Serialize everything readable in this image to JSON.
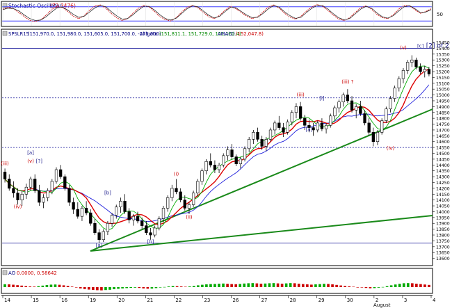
{
  "chart_data": [
    {
      "type": "line",
      "title": "Stochastic Oscillator",
      "title_value": "(72.3476)",
      "y_ticks": [
        50
      ],
      "ylim": [
        0,
        100
      ],
      "levels": [
        20,
        80
      ],
      "series": [
        {
          "name": "%K",
          "color": "#cc0000",
          "values": [
            70,
            78,
            72,
            55,
            38,
            22,
            18,
            25,
            45,
            68,
            82,
            78,
            60,
            40,
            30,
            42,
            65,
            84,
            88,
            74,
            52,
            34,
            22,
            30,
            52,
            74,
            86,
            80,
            60,
            38,
            26,
            20,
            34,
            58,
            78,
            86,
            76,
            56,
            38,
            30,
            44,
            66,
            82,
            72,
            56,
            40,
            30,
            38,
            58,
            80,
            88,
            74,
            52,
            36,
            28,
            40,
            62,
            80,
            90,
            82,
            64,
            44,
            28,
            22,
            34,
            56,
            76,
            84,
            70,
            48,
            34,
            30,
            46,
            70,
            86,
            84,
            68,
            52,
            60,
            72
          ]
        },
        {
          "name": "%D",
          "color": "#2a2a2a",
          "values": [
            68,
            74,
            72,
            62,
            45,
            30,
            22,
            24,
            38,
            58,
            76,
            79,
            66,
            48,
            36,
            40,
            58,
            76,
            86,
            80,
            60,
            42,
            28,
            30,
            46,
            66,
            82,
            82,
            66,
            46,
            30,
            24,
            32,
            52,
            72,
            84,
            80,
            62,
            44,
            33,
            40,
            60,
            78,
            76,
            60,
            45,
            34,
            36,
            52,
            72,
            86,
            78,
            58,
            42,
            31,
            36,
            56,
            74,
            86,
            85,
            70,
            50,
            33,
            25,
            31,
            50,
            70,
            82,
            74,
            54,
            38,
            32,
            42,
            62,
            80,
            85,
            72,
            56,
            58,
            68
          ]
        }
      ]
    },
    {
      "type": "candlestick",
      "header": {
        "symbol": "SPSLR15",
        "ohlc": "(151,970.0, 151,980.0, 151,605.0, 151,700.0, -275.000)",
        "alligator_label": "Alligato",
        "alligator_values": "(151,811.1, 151,729.0, 151,162.4)",
        "ama_label": "AMA(2)",
        "ama_value": "(152,047.8)"
      },
      "ylim": [
        13550,
        15480
      ],
      "y_ticks": [
        13600,
        13650,
        13700,
        13750,
        13800,
        13850,
        13900,
        13950,
        14000,
        14050,
        14100,
        14150,
        14200,
        14250,
        14300,
        14350,
        14400,
        14450,
        14500,
        14550,
        14600,
        14650,
        14700,
        14750,
        14800,
        14850,
        14900,
        14950,
        15000,
        15050,
        15100,
        15150,
        15200,
        15250,
        15300,
        15350,
        15400,
        15450
      ],
      "x_tick_labels": [
        "14",
        "15",
        "16",
        "19",
        "20",
        "21",
        "22",
        "23",
        "26",
        "27",
        "28",
        "29",
        "30",
        "2",
        "3",
        "4"
      ],
      "x_sub_label": "August",
      "horizontal_levels": [
        15400,
        14975,
        14550,
        13730
      ],
      "candles": [
        [
          14340,
          14370,
          14250,
          14280
        ],
        [
          14280,
          14320,
          14180,
          14200
        ],
        [
          14200,
          14260,
          14120,
          14160
        ],
        [
          14160,
          14200,
          14060,
          14100
        ],
        [
          14100,
          14180,
          14050,
          14150
        ],
        [
          14150,
          14240,
          14110,
          14210
        ],
        [
          14210,
          14300,
          14180,
          14280
        ],
        [
          14280,
          14320,
          14160,
          14180
        ],
        [
          14180,
          14230,
          14050,
          14080
        ],
        [
          14080,
          14150,
          14030,
          14120
        ],
        [
          14120,
          14200,
          14090,
          14180
        ],
        [
          14180,
          14280,
          14150,
          14260
        ],
        [
          14260,
          14380,
          14240,
          14360
        ],
        [
          14360,
          14400,
          14280,
          14300
        ],
        [
          14300,
          14320,
          14180,
          14200
        ],
        [
          14200,
          14230,
          14050,
          14080
        ],
        [
          14080,
          14120,
          13980,
          14020
        ],
        [
          14020,
          14080,
          13940,
          13960
        ],
        [
          13960,
          14050,
          13920,
          14030
        ],
        [
          14030,
          14090,
          13970,
          13990
        ],
        [
          13990,
          14020,
          13880,
          13900
        ],
        [
          13900,
          13940,
          13800,
          13820
        ],
        [
          13820,
          13850,
          13730,
          13760
        ],
        [
          13760,
          13850,
          13740,
          13830
        ],
        [
          13830,
          13920,
          13800,
          13900
        ],
        [
          13900,
          13990,
          13870,
          13970
        ],
        [
          13970,
          14060,
          13940,
          14040
        ],
        [
          14040,
          14120,
          13990,
          14090
        ],
        [
          14090,
          14150,
          13980,
          14000
        ],
        [
          14000,
          14030,
          13900,
          13930
        ],
        [
          13930,
          13980,
          13880,
          13960
        ],
        [
          13960,
          14000,
          13900,
          13920
        ],
        [
          13920,
          13950,
          13850,
          13880
        ],
        [
          13880,
          13920,
          13800,
          13820
        ],
        [
          13820,
          13860,
          13760,
          13800
        ],
        [
          13800,
          13880,
          13780,
          13860
        ],
        [
          13860,
          13960,
          13840,
          13940
        ],
        [
          13940,
          14050,
          13910,
          14030
        ],
        [
          14030,
          14140,
          14000,
          14120
        ],
        [
          14120,
          14230,
          14090,
          14200
        ],
        [
          14200,
          14280,
          14150,
          14170
        ],
        [
          14170,
          14200,
          14080,
          14100
        ],
        [
          14100,
          14140,
          14010,
          14030
        ],
        [
          14030,
          14080,
          13980,
          14060
        ],
        [
          14060,
          14180,
          14040,
          14160
        ],
        [
          14160,
          14280,
          14130,
          14260
        ],
        [
          14260,
          14370,
          14230,
          14350
        ],
        [
          14350,
          14450,
          14320,
          14430
        ],
        [
          14430,
          14500,
          14380,
          14400
        ],
        [
          14400,
          14440,
          14330,
          14360
        ],
        [
          14360,
          14420,
          14330,
          14400
        ],
        [
          14400,
          14500,
          14380,
          14480
        ],
        [
          14480,
          14560,
          14440,
          14530
        ],
        [
          14530,
          14580,
          14450,
          14470
        ],
        [
          14470,
          14490,
          14390,
          14410
        ],
        [
          14410,
          14470,
          14370,
          14450
        ],
        [
          14450,
          14560,
          14430,
          14540
        ],
        [
          14540,
          14640,
          14510,
          14620
        ],
        [
          14620,
          14700,
          14580,
          14680
        ],
        [
          14680,
          14720,
          14600,
          14620
        ],
        [
          14620,
          14650,
          14530,
          14560
        ],
        [
          14560,
          14640,
          14520,
          14620
        ],
        [
          14620,
          14720,
          14600,
          14700
        ],
        [
          14700,
          14780,
          14660,
          14760
        ],
        [
          14760,
          14820,
          14700,
          14720
        ],
        [
          14720,
          14760,
          14640,
          14680
        ],
        [
          14680,
          14790,
          14660,
          14770
        ],
        [
          14770,
          14870,
          14740,
          14850
        ],
        [
          14850,
          14930,
          14800,
          14900
        ],
        [
          14900,
          14940,
          14780,
          14800
        ],
        [
          14800,
          14830,
          14700,
          14740
        ],
        [
          14740,
          14790,
          14680,
          14720
        ],
        [
          14720,
          14760,
          14650,
          14700
        ],
        [
          14700,
          14780,
          14680,
          14760
        ],
        [
          14760,
          14800,
          14690,
          14710
        ],
        [
          14710,
          14760,
          14670,
          14740
        ],
        [
          14740,
          14840,
          14720,
          14820
        ],
        [
          14820,
          14910,
          14790,
          14890
        ],
        [
          14890,
          14960,
          14850,
          14940
        ],
        [
          14940,
          15020,
          14900,
          15000
        ],
        [
          15000,
          15050,
          14930,
          14950
        ],
        [
          14950,
          14990,
          14850,
          14870
        ],
        [
          14870,
          14920,
          14800,
          14900
        ],
        [
          14900,
          14950,
          14820,
          14840
        ],
        [
          14840,
          14870,
          14740,
          14760
        ],
        [
          14760,
          14800,
          14650,
          14680
        ],
        [
          14680,
          14720,
          14560,
          14600
        ],
        [
          14600,
          14700,
          14570,
          14680
        ],
        [
          14680,
          14800,
          14660,
          14780
        ],
        [
          14780,
          14900,
          14760,
          14880
        ],
        [
          14880,
          14990,
          14850,
          14970
        ],
        [
          14970,
          15080,
          14940,
          15060
        ],
        [
          15060,
          15160,
          15030,
          15140
        ],
        [
          15140,
          15230,
          15100,
          15210
        ],
        [
          15210,
          15300,
          15180,
          15280
        ],
        [
          15280,
          15340,
          15240,
          15300
        ],
        [
          15300,
          15320,
          15220,
          15240
        ],
        [
          15240,
          15270,
          15180,
          15200
        ],
        [
          15200,
          15250,
          15150,
          15220
        ],
        [
          15220,
          15240,
          15160,
          15180
        ]
      ],
      "wave_labels": [
        {
          "text": "(iii)",
          "color": "#cc0000",
          "i": 0,
          "price": 14400
        },
        {
          "text": "[a]",
          "color": "#1a1a8c",
          "i": 6,
          "price": 14490
        },
        {
          "text": "(v)",
          "color": "#cc0000",
          "i": 6,
          "price": 14420
        },
        {
          "text": "[?]",
          "color": "#1a1a8c",
          "i": 8,
          "price": 14420
        },
        {
          "text": "(iv)",
          "color": "#cc0000",
          "i": 3,
          "price": 14030
        },
        {
          "text": "[a]",
          "color": "#1a1a8c",
          "i": 22,
          "price": 13700
        },
        {
          "text": "[b]",
          "color": "#1a1a8c",
          "i": 24,
          "price": 14150
        },
        {
          "text": "[b]",
          "color": "#1a1a8c",
          "i": 34,
          "price": 13730
        },
        {
          "text": "(i)",
          "color": "#cc0000",
          "i": 40,
          "price": 14310
        },
        {
          "text": "(ii)",
          "color": "#cc0000",
          "i": 43,
          "price": 13940
        },
        {
          "text": "(iii)",
          "color": "#cc0000",
          "i": 69,
          "price": 14990
        },
        {
          "text": "[i]",
          "color": "#1a1a8c",
          "i": 74,
          "price": 14960
        },
        {
          "text": "[a]",
          "color": "#1a1a8c",
          "i": 71,
          "price": 14690
        },
        {
          "text": "(iii) ?",
          "color": "#cc0000",
          "i": 80,
          "price": 15100
        },
        {
          "text": "(iv)",
          "color": "#cc0000",
          "i": 90,
          "price": 14530
        },
        {
          "text": "(v)",
          "color": "#cc0000",
          "i": 93,
          "price": 15390
        },
        {
          "text": "[c]",
          "color": "#1a1a8c",
          "i": 97,
          "price": 15405
        },
        {
          "text": "[2] of 2",
          "color": "#1a1a8c",
          "i": 101,
          "price": 15405
        }
      ]
    },
    {
      "type": "bar",
      "title": "AO",
      "title_values": "0.0000, 0.58642",
      "colors": {
        "up": "#00aa00",
        "down": "#cc0000"
      },
      "values": [
        0.42,
        0.4,
        0.35,
        0.28,
        0.22,
        0.15,
        0.1,
        0.08,
        0.14,
        0.22,
        0.3,
        0.36,
        0.38,
        0.34,
        0.26,
        0.18,
        0.08,
        -0.05,
        -0.18,
        -0.28,
        -0.35,
        -0.4,
        -0.44,
        -0.46,
        -0.42,
        -0.38,
        -0.3,
        -0.24,
        -0.18,
        -0.14,
        -0.1,
        -0.08,
        -0.12,
        -0.18,
        -0.22,
        -0.2,
        -0.14,
        -0.06,
        0.02,
        0.1,
        0.16,
        0.14,
        0.1,
        0.06,
        0.1,
        0.18,
        0.26,
        0.34,
        0.4,
        0.44,
        0.46,
        0.5,
        0.52,
        0.48,
        0.44,
        0.42,
        0.46,
        0.52,
        0.56,
        0.58,
        0.54,
        0.5,
        0.52,
        0.56,
        0.58,
        0.54,
        0.5,
        0.54,
        0.58,
        0.56,
        0.5,
        0.44,
        0.4,
        0.36,
        0.4,
        0.44,
        0.48,
        0.46,
        0.4,
        0.32,
        0.24,
        0.18,
        0.12,
        0.06,
        0.0,
        -0.06,
        -0.12,
        -0.16,
        -0.14,
        -0.08,
        0.02,
        0.14,
        0.26,
        0.38,
        0.48,
        0.56,
        0.58,
        0.56,
        0.5,
        0.44,
        0.38,
        0.32
      ],
      "ylim": [
        -1,
        1
      ]
    }
  ]
}
